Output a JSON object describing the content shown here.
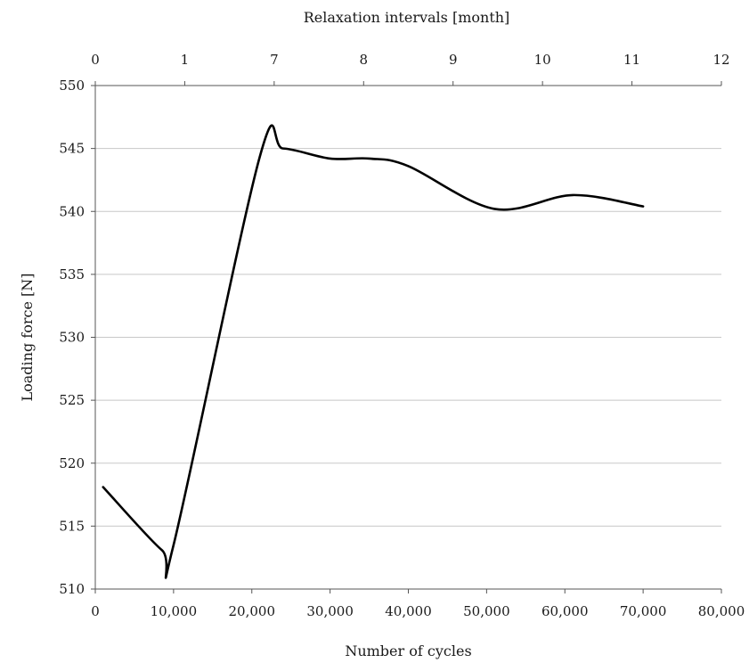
{
  "chart_data": {
    "type": "line",
    "title": "",
    "xlabel": "Number of cycles",
    "ylabel": "Loading force [N]",
    "x2label": "Relaxation intervals [month]",
    "xlim": [
      0,
      80000
    ],
    "ylim": [
      510,
      550
    ],
    "x_ticks": [
      0,
      10000,
      20000,
      30000,
      40000,
      50000,
      60000,
      70000,
      80000
    ],
    "x_tick_labels": [
      "0",
      "10,000",
      "20,000",
      "30,000",
      "40,000",
      "50,000",
      "60,000",
      "70,000",
      "80,000"
    ],
    "y_ticks": [
      510,
      515,
      520,
      525,
      530,
      535,
      540,
      545,
      550
    ],
    "y_tick_labels": [
      "510",
      "515",
      "520",
      "525",
      "530",
      "535",
      "540",
      "545",
      "550"
    ],
    "x2_tick_labels": [
      "0",
      "1",
      "7",
      "8",
      "9",
      "10",
      "11",
      "12"
    ],
    "grid": "horizontal",
    "line_color": "#000000",
    "grid_color": "#c8c8c8",
    "series": [
      {
        "x": [
          1000,
          8500,
          10000,
          21000,
          24000,
          30000,
          35000,
          40000,
          51000,
          61000,
          70000
        ],
        "y": [
          518.1,
          513.1,
          513.5,
          544.3,
          545.0,
          544.2,
          544.2,
          543.6,
          540.2,
          541.3,
          540.4
        ]
      }
    ]
  }
}
